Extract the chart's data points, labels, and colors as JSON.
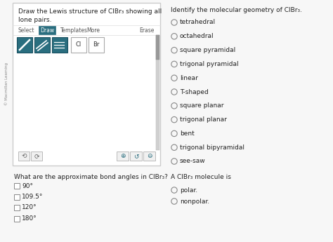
{
  "bg_color": "#f0f0f0",
  "panel_bg": "#ffffff",
  "left_panel_title_line1": "Draw the Lewis structure of ClBr₃ showing all",
  "left_panel_title_line2": "lone pairs.",
  "toolbar_buttons": [
    "Select",
    "Draw",
    "Templates",
    "More"
  ],
  "element_buttons": [
    "Cl",
    "Br"
  ],
  "right_section_title": "Identify the molecular geometry of ClBr₃.",
  "radio_options": [
    "tetrahedral",
    "octahedral",
    "square pyramidal",
    "trigonal pyramidal",
    "linear",
    "T-shaped",
    "square planar",
    "trigonal planar",
    "bent",
    "trigonal bipyramidal",
    "see-saw"
  ],
  "bottom_left_title": "What are the approximate bond angles in ClBr₃?",
  "checkbox_options": [
    "90°",
    "109.5°",
    "120°",
    "180°"
  ],
  "bottom_right_title": "A ClBr₃ molecule is",
  "polar_options": [
    "polar.",
    "nonpolar."
  ],
  "draw_btn_color": "#2a6e7f",
  "draw_btn_text_color": "#ffffff",
  "side_label": "© Macmillan Learning",
  "teal_btn_color": "#2a6e7f",
  "panel_outline": "#cccccc",
  "text_color": "#222222",
  "radio_circle_color": "#888888",
  "erase_text": "Erase",
  "scrollbar_track": "#d0d0d0",
  "scrollbar_thumb": "#999999"
}
